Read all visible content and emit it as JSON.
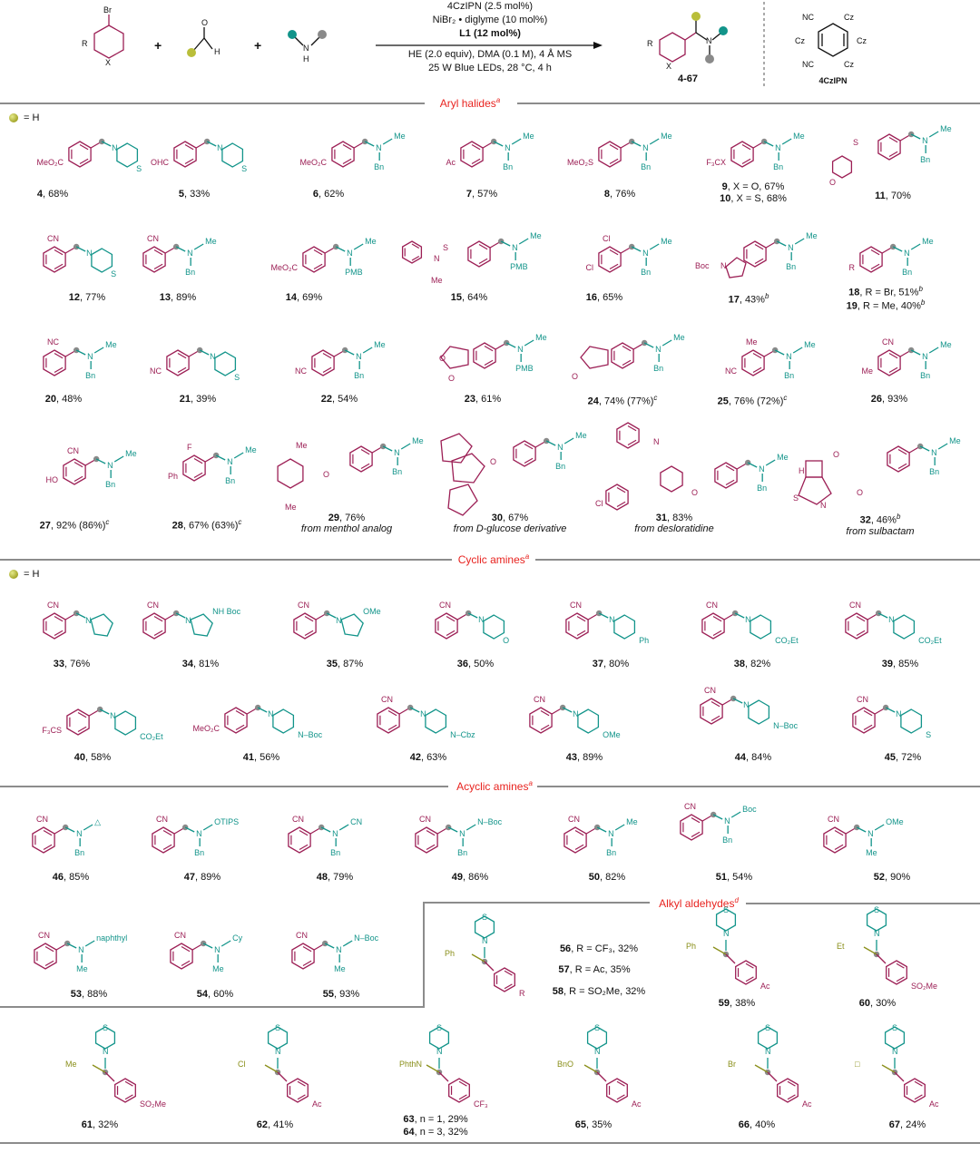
{
  "scheme": {
    "reagents": [
      "4CzIPN (2.5 mol%)",
      "NiBr₂ • diglyme (10 mol%)",
      "L1 (12 mol%)",
      "HE (2.0 equiv), DMA (0.1 M), 4 Å MS",
      "25 W Blue LEDs, 28 °C, 4 h"
    ],
    "product_label": "4-67",
    "catalyst_label": "4CzIPN",
    "catalyst_groups": [
      "NC",
      "Cz",
      "Cz",
      "Cz",
      "Cz",
      "NC"
    ],
    "atoms": [
      "Br",
      "R",
      "X",
      "O",
      "H",
      "N",
      "H"
    ]
  },
  "sections": {
    "aryl": {
      "title": "Aryl halides",
      "sup": "a"
    },
    "cyclic": {
      "title": "Cyclic amines",
      "sup": "a"
    },
    "acyclic": {
      "title": "Acyclic amines",
      "sup": "a"
    },
    "alkyl": {
      "title": "Alkyl aldehydes",
      "sup": "d"
    }
  },
  "legend": "= H",
  "colors": {
    "aryl": "#9c1f55",
    "amine": "#12948a",
    "alkyl": "#8a8f1a",
    "header": "#e8231f",
    "rule": "#8c8c8c"
  },
  "labels": {
    "c4": {
      "num": "4",
      "text": ", 68%"
    },
    "c5": {
      "num": "5",
      "text": ", 33%"
    },
    "c6": {
      "num": "6",
      "text": ", 62%"
    },
    "c7": {
      "num": "7",
      "text": ", 57%"
    },
    "c8": {
      "num": "8",
      "text": ", 76%"
    },
    "c9": {
      "num": "9",
      "text": ", X = O, 67%"
    },
    "c10": {
      "num": "10",
      "text": ", X = S, 68%"
    },
    "c11": {
      "num": "11",
      "text": ", 70%"
    },
    "c12": {
      "num": "12",
      "text": ", 77%"
    },
    "c13": {
      "num": "13",
      "text": ", 89%"
    },
    "c14": {
      "num": "14",
      "text": ", 69%"
    },
    "c15": {
      "num": "15",
      "text": ", 64%"
    },
    "c16": {
      "num": "16",
      "text": ", 65%"
    },
    "c17": {
      "num": "17",
      "text": ", 43%",
      "sup": "b"
    },
    "c18": {
      "num": "18",
      "text": ", R = Br, 51%",
      "sup": "b"
    },
    "c19": {
      "num": "19",
      "text": ", R = Me, 40%",
      "sup": "b"
    },
    "c20": {
      "num": "20",
      "text": ", 48%"
    },
    "c21": {
      "num": "21",
      "text": ", 39%"
    },
    "c22": {
      "num": "22",
      "text": ", 54%"
    },
    "c23": {
      "num": "23",
      "text": ", 61%"
    },
    "c24": {
      "num": "24",
      "text": ", 74% (77%)",
      "sup": "c"
    },
    "c25": {
      "num": "25",
      "text": ", 76% (72%)",
      "sup": "c"
    },
    "c26": {
      "num": "26",
      "text": ", 93%"
    },
    "c27": {
      "num": "27",
      "text": ", 92% (86%)",
      "sup": "c"
    },
    "c28": {
      "num": "28",
      "text": ", 67% (63%)",
      "sup": "c"
    },
    "c29": {
      "num": "29",
      "text": ", 76%",
      "from": "from menthol analog"
    },
    "c30": {
      "num": "30",
      "text": ", 67%",
      "from": "from D-glucose derivative"
    },
    "c31": {
      "num": "31",
      "text": ", 83%",
      "from": "from desloratidine"
    },
    "c32": {
      "num": "32",
      "text": ", 46%",
      "sup": "b",
      "from": "from sulbactam"
    },
    "c33": {
      "num": "33",
      "text": ", 76%"
    },
    "c34": {
      "num": "34",
      "text": ", 81%"
    },
    "c35": {
      "num": "35",
      "text": ", 87%"
    },
    "c36": {
      "num": "36",
      "text": ", 50%"
    },
    "c37": {
      "num": "37",
      "text": ", 80%"
    },
    "c38": {
      "num": "38",
      "text": ", 82%"
    },
    "c39": {
      "num": "39",
      "text": ", 85%"
    },
    "c40": {
      "num": "40",
      "text": ", 58%"
    },
    "c41": {
      "num": "41",
      "text": ", 56%"
    },
    "c42": {
      "num": "42",
      "text": ", 63%"
    },
    "c43": {
      "num": "43",
      "text": ", 89%"
    },
    "c44": {
      "num": "44",
      "text": ", 84%"
    },
    "c45": {
      "num": "45",
      "text": ", 72%"
    },
    "c46": {
      "num": "46",
      "text": ", 85%"
    },
    "c47": {
      "num": "47",
      "text": ", 89%"
    },
    "c48": {
      "num": "48",
      "text": ", 79%"
    },
    "c49": {
      "num": "49",
      "text": ", 86%"
    },
    "c50": {
      "num": "50",
      "text": ", 82%"
    },
    "c51": {
      "num": "51",
      "text": ", 54%"
    },
    "c52": {
      "num": "52",
      "text": ", 90%"
    },
    "c53": {
      "num": "53",
      "text": ", 88%"
    },
    "c54": {
      "num": "54",
      "text": ", 60%"
    },
    "c55": {
      "num": "55",
      "text": ", 93%"
    },
    "c56": {
      "num": "56",
      "text": ", R = CF₃, 32%"
    },
    "c57": {
      "num": "57",
      "text": ", R = Ac, 35%"
    },
    "c58": {
      "num": "58",
      "text": ", R = SO₂Me, 32%"
    },
    "c59": {
      "num": "59",
      "text": ", 38%"
    },
    "c60": {
      "num": "60",
      "text": ", 30%"
    },
    "c61": {
      "num": "61",
      "text": ", 32%"
    },
    "c62": {
      "num": "62",
      "text": ", 41%"
    },
    "c63": {
      "num": "63",
      "text": ", n = 1, 29%"
    },
    "c64": {
      "num": "64",
      "text": ", n = 3, 32%"
    },
    "c65": {
      "num": "65",
      "text": ", 35%"
    },
    "c66": {
      "num": "66",
      "text": ", 40%"
    },
    "c67": {
      "num": "67",
      "text": ", 24%"
    }
  },
  "structures": {
    "c4": {
      "sub": "MeO₂C",
      "amine": "thiomorpholine"
    },
    "c5": {
      "sub": "OHC",
      "amine": "thiomorpholine"
    },
    "c6": {
      "sub": "MeO₂C",
      "amine": "NMeBn"
    },
    "c7": {
      "sub": "Ac",
      "amine": "NMeBn"
    },
    "c8": {
      "sub": "MeO₂S",
      "amine": "NMeBn"
    },
    "c9": {
      "sub": "F₃CX",
      "amine": "NMeBn"
    },
    "c11": {
      "sub": "morpholinosulfonyl",
      "amine": "NMeBn"
    },
    "c12": {
      "sub": "CN",
      "amine": "thiomorpholine"
    },
    "c13": {
      "sub": "CN",
      "amine": "NMeBn"
    },
    "c14": {
      "sub": "MeO₂C",
      "amine": "NMePMB"
    },
    "c15": {
      "sub": "N-methyl-N-pyridylsulfonamide",
      "amine": "NMePMB"
    },
    "c16": {
      "sub": "Cl, Cl",
      "amine": "NMeBn"
    },
    "c17": {
      "sub": "N-Boc indole",
      "amine": "NMeBn"
    },
    "c18": {
      "sub": "R",
      "amine": "NMeBn"
    },
    "c20": {
      "sub": "NC (pyridyl)",
      "amine": "NMeBn"
    },
    "c21": {
      "sub": "NC (pyridyl)",
      "amine": "thiomorpholine"
    },
    "c22": {
      "sub": "NC (pyridyl)",
      "amine": "NMeBn"
    },
    "c23": {
      "sub": "phthalide",
      "amine": "NMePMB"
    },
    "c24": {
      "sub": "indanone",
      "amine": "NMeBn"
    },
    "c25": {
      "sub": "NC, Me",
      "amine": "NMeBn"
    },
    "c26": {
      "sub": "CN, Me",
      "amine": "NMeBn"
    },
    "c27": {
      "sub": "CN, HO",
      "amine": "NMeBn"
    },
    "c28": {
      "sub": "F, Ph",
      "amine": "NMeBn"
    },
    "c29": {
      "sub": "menthyl ester",
      "amine": "NMeBn"
    },
    "c30": {
      "sub": "diacetone glucose ester",
      "amine": "NMeBn"
    },
    "c31": {
      "sub": "desloratadine amide",
      "amine": "NMeBn"
    },
    "c32": {
      "sub": "sulbactam ester",
      "amine": "NMeBn"
    },
    "c33": {
      "sub": "CN",
      "amine": "pyrrolidine"
    },
    "c34": {
      "sub": "CN",
      "amine": "3-NHBoc-pyrrolidine"
    },
    "c35": {
      "sub": "CN",
      "amine": "2-CH₂OMe-pyrrolidine"
    },
    "c36": {
      "sub": "CN",
      "amine": "morpholine"
    },
    "c37": {
      "sub": "CN",
      "amine": "4-Ph-piperidine"
    },
    "c38": {
      "sub": "CN",
      "amine": "4-CO₂Et-piperidine"
    },
    "c39": {
      "sub": "CN",
      "amine": "3-CO₂Et-piperidine"
    },
    "c40": {
      "sub": "F₃CS",
      "amine": "2-CO₂Et-piperidine"
    },
    "c41": {
      "sub": "MeO₂C",
      "amine": "N-Boc-piperazine"
    },
    "c42": {
      "sub": "CN",
      "amine": "N-Cbz-piperazine"
    },
    "c43": {
      "sub": "CN",
      "amine": "6-OMe-tetrahydroisoquinoline"
    },
    "c44": {
      "sub": "CN",
      "amine": "N-Boc spiro-diamine"
    },
    "c45": {
      "sub": "CN",
      "amine": "tetrahydrothienopyridine"
    },
    "c46": {
      "sub": "CN",
      "amine": "N(Bn)CH₂-cyclopropyl"
    },
    "c47": {
      "sub": "CN",
      "amine": "N(Bn)CH₂CH₂OTIPS"
    },
    "c48": {
      "sub": "CN",
      "amine": "N(Bn)CH₂CH₂CN"
    },
    "c49": {
      "sub": "CN",
      "amine": "N(Bn)-N-Boc-piperidinyl"
    },
    "c50": {
      "sub": "CN",
      "amine": "N(Bn)iPr"
    },
    "c51": {
      "sub": "CN",
      "amine": "N(Bn)CH₂-N-Boc-indolyl"
    },
    "c52": {
      "sub": "CN",
      "amine": "N(Me)CH₂-4-OMe-phenyl"
    },
    "c53": {
      "sub": "CN",
      "amine": "N(Me)CH₂-naphthyl"
    },
    "c54": {
      "sub": "CN",
      "amine": "N(Me)cyclohexyl"
    },
    "c55": {
      "sub": "CN",
      "amine": "N(Me)-N-Boc-pyrrolidinyl"
    },
    "c56": {
      "sub": "R",
      "chain": "Ph"
    },
    "c59": {
      "sub": "Ac",
      "chain": "Ph"
    },
    "c60": {
      "sub": "SO₂Me",
      "chain": "Et"
    },
    "c61": {
      "sub": "SO₂Me",
      "chain": "Me"
    },
    "c62": {
      "sub": "Ac",
      "chain": "Cl"
    },
    "c63": {
      "sub": "CF₃",
      "chain": "PhthN"
    },
    "c65": {
      "sub": "Ac",
      "chain": "BnO"
    },
    "c66": {
      "sub": "Ac",
      "chain": "Br"
    },
    "c67": {
      "sub": "Ac",
      "chain": "cyclobutyl"
    }
  }
}
